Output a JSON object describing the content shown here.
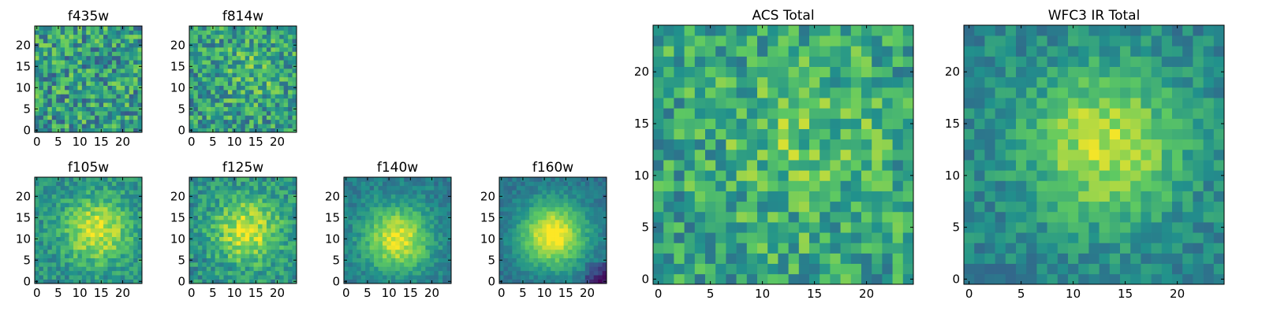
{
  "colors": {
    "colormap": "viridis",
    "viridis_stops": [
      "#440154",
      "#3b528b",
      "#21918c",
      "#5ec962",
      "#fde725"
    ],
    "frame": "#000000",
    "background": "#ffffff"
  },
  "chart_data": [
    {
      "type": "heatmap",
      "title": "f435w",
      "colormap": "viridis",
      "grid_size": [
        25,
        25
      ],
      "xlim": [
        0,
        24
      ],
      "ylim": [
        0,
        24
      ],
      "xticks": [
        "0",
        "5",
        "10",
        "15",
        "20"
      ],
      "yticks": [
        "0",
        "5",
        "10",
        "15",
        "20"
      ],
      "origin": "lower",
      "pattern": "uniform noise",
      "z_peak": [
        12,
        12
      ],
      "z_spread": 0.0,
      "z_noise": 0.55,
      "z_base": 0.55,
      "seed": 11
    },
    {
      "type": "heatmap",
      "title": "f814w",
      "colormap": "viridis",
      "grid_size": [
        25,
        25
      ],
      "xlim": [
        0,
        24
      ],
      "ylim": [
        0,
        24
      ],
      "xticks": [
        "0",
        "5",
        "10",
        "15",
        "20"
      ],
      "yticks": [
        "0",
        "5",
        "10",
        "15",
        "20"
      ],
      "origin": "lower",
      "pattern": "noise with faint central source",
      "z_peak": [
        14,
        14
      ],
      "z_spread": 0.12,
      "z_noise": 0.5,
      "z_base": 0.55,
      "seed": 23
    },
    {
      "type": "heatmap",
      "title": "f105w",
      "colormap": "viridis",
      "grid_size": [
        25,
        25
      ],
      "xlim": [
        0,
        24
      ],
      "ylim": [
        0,
        24
      ],
      "xticks": [
        "0",
        "5",
        "10",
        "15",
        "20"
      ],
      "yticks": [
        "0",
        "5",
        "10",
        "15",
        "20"
      ],
      "origin": "lower",
      "pattern": "central source",
      "z_peak": [
        14,
        12
      ],
      "z_spread": 0.45,
      "z_noise": 0.28,
      "z_base": 0.5,
      "seed": 37
    },
    {
      "type": "heatmap",
      "title": "f125w",
      "colormap": "viridis",
      "grid_size": [
        25,
        25
      ],
      "xlim": [
        0,
        24
      ],
      "ylim": [
        0,
        24
      ],
      "xticks": [
        "0",
        "5",
        "10",
        "15",
        "20"
      ],
      "yticks": [
        "0",
        "5",
        "10",
        "15",
        "20"
      ],
      "origin": "lower",
      "pattern": "central source",
      "z_peak": [
        13,
        12
      ],
      "z_spread": 0.45,
      "z_noise": 0.32,
      "z_base": 0.5,
      "seed": 41
    },
    {
      "type": "heatmap",
      "title": "f140w",
      "colormap": "viridis",
      "grid_size": [
        25,
        25
      ],
      "xlim": [
        0,
        24
      ],
      "ylim": [
        0,
        24
      ],
      "xticks": [
        "0",
        "5",
        "10",
        "15",
        "20"
      ],
      "yticks": [
        "0",
        "5",
        "10",
        "15",
        "20"
      ],
      "origin": "lower",
      "pattern": "central source",
      "z_peak": [
        12,
        10
      ],
      "z_spread": 0.55,
      "z_noise": 0.2,
      "z_base": 0.42,
      "seed": 53
    },
    {
      "type": "heatmap",
      "title": "f160w",
      "colormap": "viridis",
      "grid_size": [
        25,
        25
      ],
      "xlim": [
        0,
        24
      ],
      "ylim": [
        0,
        24
      ],
      "xticks": [
        "0",
        "5",
        "10",
        "15",
        "20"
      ],
      "yticks": [
        "0",
        "5",
        "10",
        "15",
        "20"
      ],
      "origin": "lower",
      "pattern": "central source with dark lower-right corner",
      "z_peak": [
        12,
        11
      ],
      "z_spread": 0.65,
      "z_noise": 0.15,
      "z_base": 0.38,
      "seed": 67
    },
    {
      "type": "heatmap",
      "title": "ACS Total",
      "colormap": "viridis",
      "grid_size": [
        25,
        25
      ],
      "xlim": [
        0,
        24
      ],
      "ylim": [
        0,
        24
      ],
      "xticks": [
        "0",
        "5",
        "10",
        "15",
        "20"
      ],
      "yticks": [
        "0",
        "5",
        "10",
        "15",
        "20"
      ],
      "origin": "lower",
      "pattern": "noise with faint central source",
      "z_peak": [
        14,
        13
      ],
      "z_spread": 0.15,
      "z_noise": 0.45,
      "z_base": 0.58,
      "seed": 79
    },
    {
      "type": "heatmap",
      "title": "WFC3 IR Total",
      "colormap": "viridis",
      "grid_size": [
        25,
        25
      ],
      "xlim": [
        0,
        24
      ],
      "ylim": [
        0,
        24
      ],
      "xticks": [
        "0",
        "5",
        "10",
        "15",
        "20"
      ],
      "yticks": [
        "0",
        "5",
        "10",
        "15",
        "20"
      ],
      "origin": "lower",
      "pattern": "central source",
      "z_peak": [
        13,
        13
      ],
      "z_spread": 0.45,
      "z_noise": 0.25,
      "z_base": 0.45,
      "seed": 97
    }
  ]
}
